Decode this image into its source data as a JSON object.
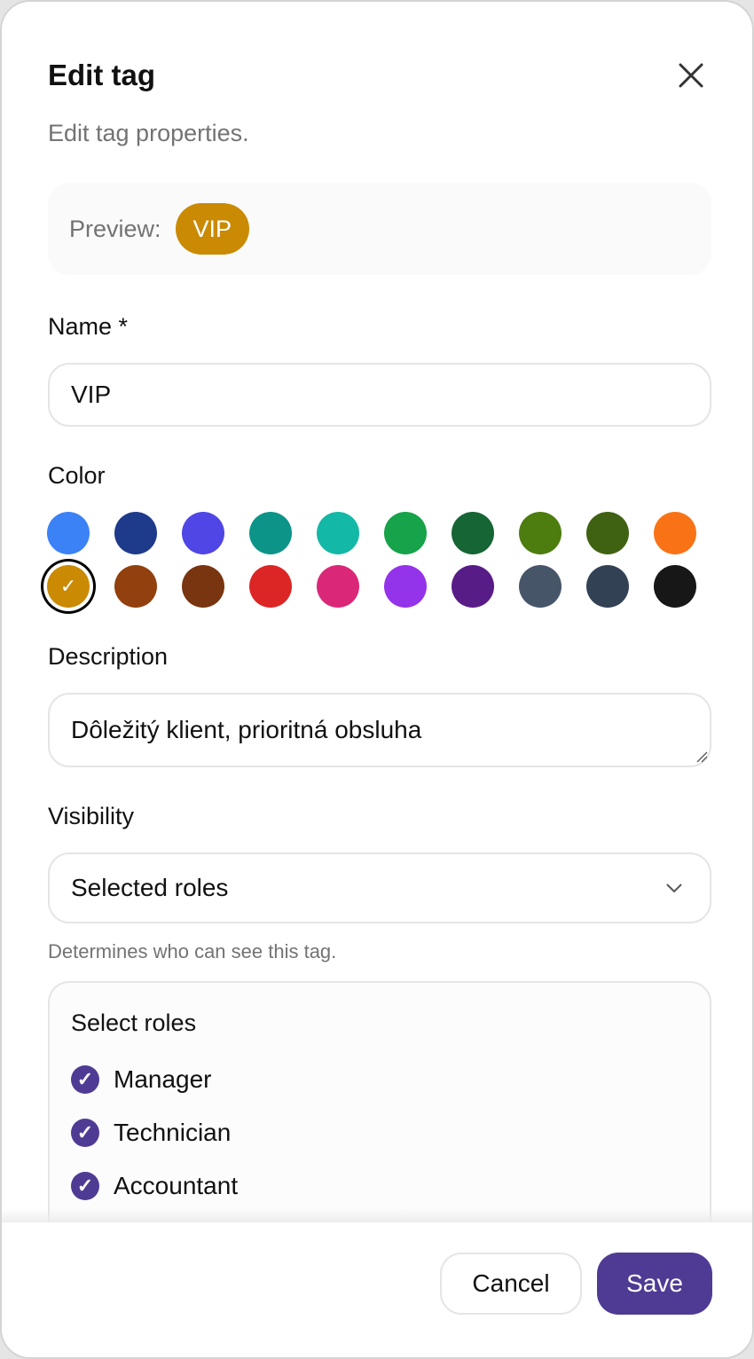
{
  "dialog": {
    "title": "Edit tag",
    "subtitle": "Edit tag properties.",
    "close_icon": "close-icon"
  },
  "preview": {
    "label": "Preview:",
    "chip_text": "VIP",
    "chip_color": "#ca8a04"
  },
  "name": {
    "label": "Name *",
    "value": "VIP"
  },
  "color": {
    "label": "Color",
    "selected": "#ca8a04",
    "options": [
      "#3b82f6",
      "#1e3a8a",
      "#4f46e5",
      "#0d9488",
      "#14b8a6",
      "#16a34a",
      "#166534",
      "#4d7c0f",
      "#3f6212",
      "#f97316",
      "#ca8a04",
      "#92400e",
      "#78350f",
      "#dc2626",
      "#db2777",
      "#9333ea",
      "#581c87",
      "#475569",
      "#334155",
      "#171717"
    ]
  },
  "description": {
    "label": "Description",
    "value": "Dôležitý klient, prioritná obsluha"
  },
  "visibility": {
    "label": "Visibility",
    "value": "Selected roles",
    "help": "Determines who can see this tag."
  },
  "roles": {
    "title": "Select roles",
    "items": [
      {
        "label": "Manager",
        "checked": true
      },
      {
        "label": "Technician",
        "checked": true
      },
      {
        "label": "Accountant",
        "checked": true
      }
    ]
  },
  "footer": {
    "cancel": "Cancel",
    "save": "Save",
    "accent": "#4f3b94"
  }
}
